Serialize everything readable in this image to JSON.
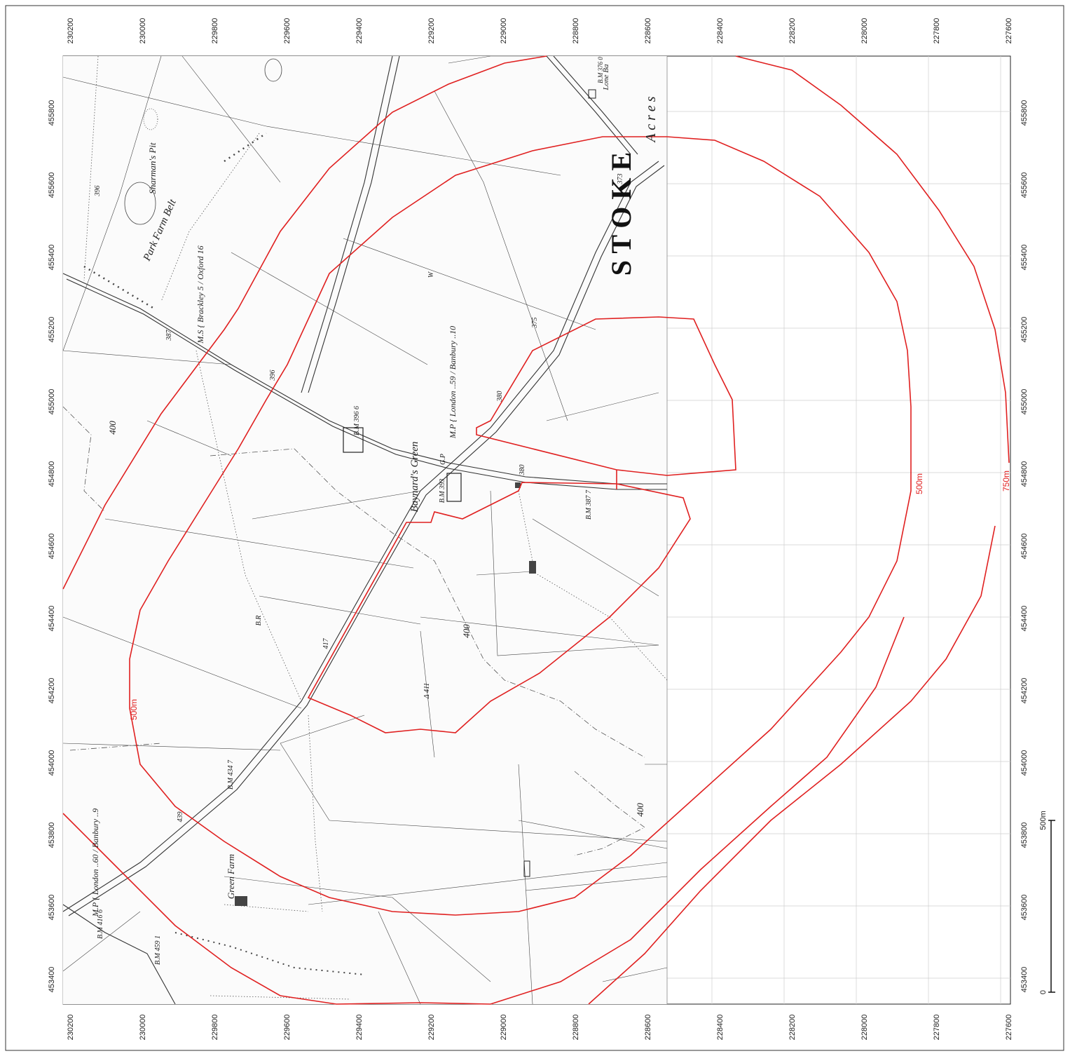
{
  "map": {
    "top_ticks": [
      "230200",
      "230000",
      "229800",
      "229600",
      "229400",
      "229200",
      "229000",
      "228800",
      "228600",
      "228400",
      "228200",
      "228000",
      "227800",
      "227600"
    ],
    "bottom_ticks": [
      "230200",
      "230000",
      "229800",
      "229600",
      "229400",
      "229200",
      "229000",
      "228800",
      "228600",
      "228400",
      "228200",
      "228000",
      "227800",
      "227600"
    ],
    "left_ticks": [
      "453400",
      "453600",
      "453800",
      "454000",
      "454200",
      "454400",
      "454600",
      "454800",
      "455000",
      "455200",
      "455400",
      "455600",
      "455800"
    ],
    "right_ticks": [
      "453400",
      "453600",
      "453800",
      "454000",
      "454200",
      "454400",
      "454600",
      "454800",
      "455000",
      "455200",
      "455400",
      "455600",
      "455800"
    ],
    "buffer_labels": {
      "inner": "500m",
      "outer": "750m",
      "inner_left": "500m"
    },
    "scale_bar": {
      "start": "0",
      "end": "500m"
    },
    "place_labels": {
      "baynards_green": "Baynard's Green",
      "green_farm": "Green Farm",
      "park_farm_belt": "Park Farm Belt",
      "sharmans_pit": "Sharman's Pit",
      "stoke": "S T O K E",
      "acres": "A c r e s",
      "lone_barn": "Lone Ba"
    },
    "annotations": {
      "bm_396_6": "B.M 396 6",
      "bm_393": "B.M 393",
      "bm_387_7": "B.M 387 7",
      "bm_434_7": "B.M 434 7",
      "bm_416_6": "B.M 416 6",
      "bm_459_1": "B.M 459 1",
      "bm_376": "B.M 376 0",
      "mp_london_banbury_1": "M.P { London ..59 / Banbury ..10",
      "mp_london_banbury_2": "M.P { London ..60 / Banbury ..9",
      "ms_brackley_oxford": "M.S { Brackley 5 / Oxford 16",
      "spot_375": "375",
      "spot_373": "373",
      "spot_380": "380",
      "spot_380b": "380",
      "spot_387": "387",
      "spot_396": "396",
      "spot_396b": "396",
      "spot_411": "Δ 411",
      "spot_417": "417",
      "spot_439": "439",
      "contour_400a": "400",
      "contour_400b": "400",
      "contour_400c": "400",
      "gp": "G.P",
      "w": "W",
      "br": "B.R"
    },
    "colors": {
      "buffer": "#e02020",
      "grid": "#cfcfcf",
      "line": "#333333"
    }
  }
}
